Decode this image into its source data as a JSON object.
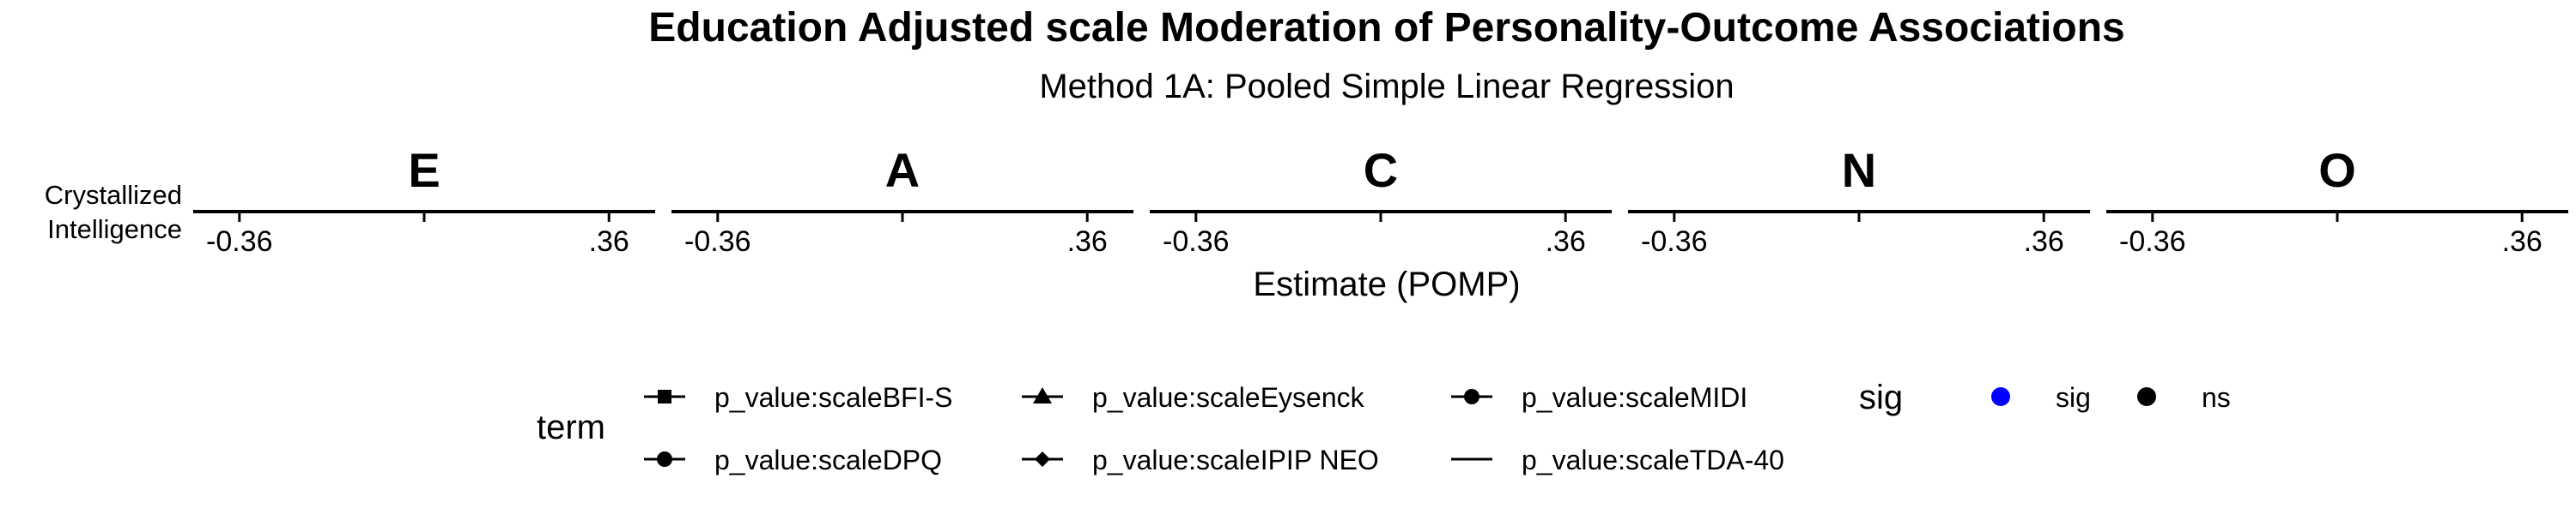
{
  "chart_data": {
    "type": "scatter",
    "title": "Education Adjusted scale Moderation of Personality-Outcome Associations",
    "subtitle": "Method 1A: Pooled Simple Linear Regression",
    "facets": [
      "E",
      "A",
      "C",
      "N",
      "O"
    ],
    "rows": [
      "Crystallized Intelligence"
    ],
    "xlabel": "Estimate (POMP)",
    "ylabel": "",
    "xlim": [
      -0.45,
      0.45
    ],
    "x_ticks": [
      -0.36,
      0,
      0.36
    ],
    "x_tick_labels": [
      "-0.36",
      "",
      ".36"
    ],
    "grid": false,
    "points": [],
    "legend": {
      "position": "bottom",
      "term": {
        "title": "term",
        "entries": [
          {
            "label": "p_value:scaleBFI-S",
            "shape": "square"
          },
          {
            "label": "p_value:scaleEysenck",
            "shape": "triangle"
          },
          {
            "label": "p_value:scaleMIDI",
            "shape": "circle"
          },
          {
            "label": "p_value:scaleDPQ",
            "shape": "circle"
          },
          {
            "label": "p_value:scaleIPIP NEO",
            "shape": "diamond"
          },
          {
            "label": "p_value:scaleTDA-40",
            "shape": "none"
          }
        ]
      },
      "sig": {
        "title": "sig",
        "entries": [
          {
            "label": "sig",
            "color": "#0000ff"
          },
          {
            "label": "ns",
            "color": "#000000"
          }
        ]
      }
    }
  }
}
